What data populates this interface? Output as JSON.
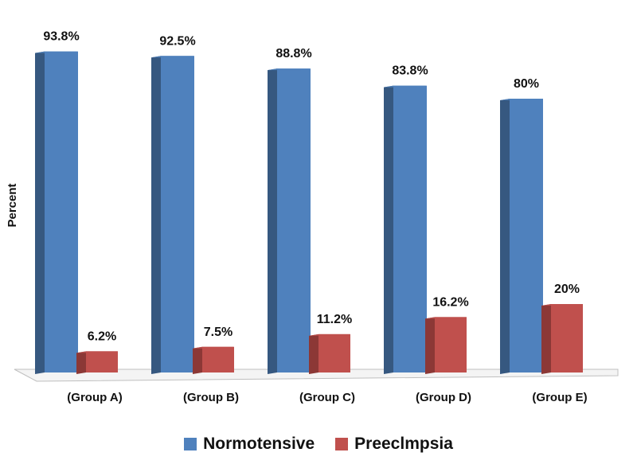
{
  "chart_data": {
    "type": "bar",
    "categories": [
      "(Group A)",
      "(Group B)",
      "(Group C)",
      "(Group D)",
      "(Group E)"
    ],
    "series": [
      {
        "name": "Normotensive",
        "values": [
          93.8,
          92.5,
          88.8,
          83.8,
          80
        ],
        "labels": [
          "93.8%",
          "92.5%",
          "88.8%",
          "83.8%",
          "80%"
        ],
        "color": "#4f81bd",
        "side_color": "#365880"
      },
      {
        "name": "Preeclmpsia",
        "values": [
          6.2,
          7.5,
          11.2,
          16.2,
          20
        ],
        "labels": [
          "6.2%",
          "7.5%",
          "11.2%",
          "16.2%",
          "20%"
        ],
        "color": "#c0504d",
        "side_color": "#8c3836"
      }
    ],
    "title": "",
    "xlabel": "",
    "ylabel": "Percent",
    "ylim": [
      0,
      100
    ],
    "grid": false,
    "legend_position": "bottom"
  }
}
